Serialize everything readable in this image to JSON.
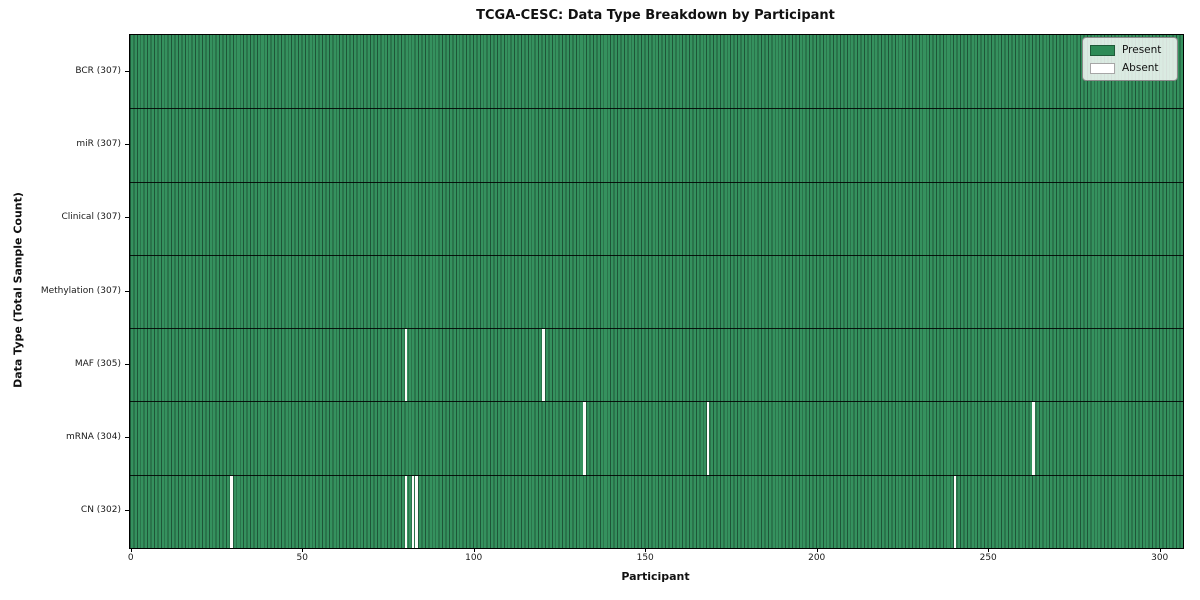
{
  "chart_data": {
    "type": "heatmap",
    "title": "TCGA-CESC: Data Type Breakdown by Participant",
    "xlabel": "Participant",
    "ylabel": "Data Type (Total Sample Count)",
    "n_participants": 307,
    "x_ticks": [
      0,
      50,
      100,
      150,
      200,
      250,
      300
    ],
    "rows": [
      {
        "label": "BCR (307)",
        "data_type": "BCR",
        "total": 307,
        "absent_participants": []
      },
      {
        "label": "miR (307)",
        "data_type": "miR",
        "total": 307,
        "absent_participants": []
      },
      {
        "label": "Clinical (307)",
        "data_type": "Clinical",
        "total": 307,
        "absent_participants": []
      },
      {
        "label": "Methylation (307)",
        "data_type": "Methylation",
        "total": 307,
        "absent_participants": []
      },
      {
        "label": "MAF (305)",
        "data_type": "MAF",
        "total": 305,
        "absent_participants": [
          80,
          120
        ]
      },
      {
        "label": "mRNA (304)",
        "data_type": "mRNA",
        "total": 304,
        "absent_participants": [
          132,
          168,
          263
        ]
      },
      {
        "label": "CN (302)",
        "data_type": "CN",
        "total": 302,
        "absent_participants": [
          29,
          80,
          82,
          83,
          240
        ]
      }
    ],
    "legend": [
      {
        "label": "Present",
        "color": "#2e8b57"
      },
      {
        "label": "Absent",
        "color": "#ffffff"
      }
    ],
    "colors": {
      "present_fill": "#35915e",
      "cell_edge": "#1e5638",
      "absent_fill": "#fcfcfa",
      "row_divider": "#000000"
    },
    "legend_position": "upper right",
    "grid": false
  }
}
